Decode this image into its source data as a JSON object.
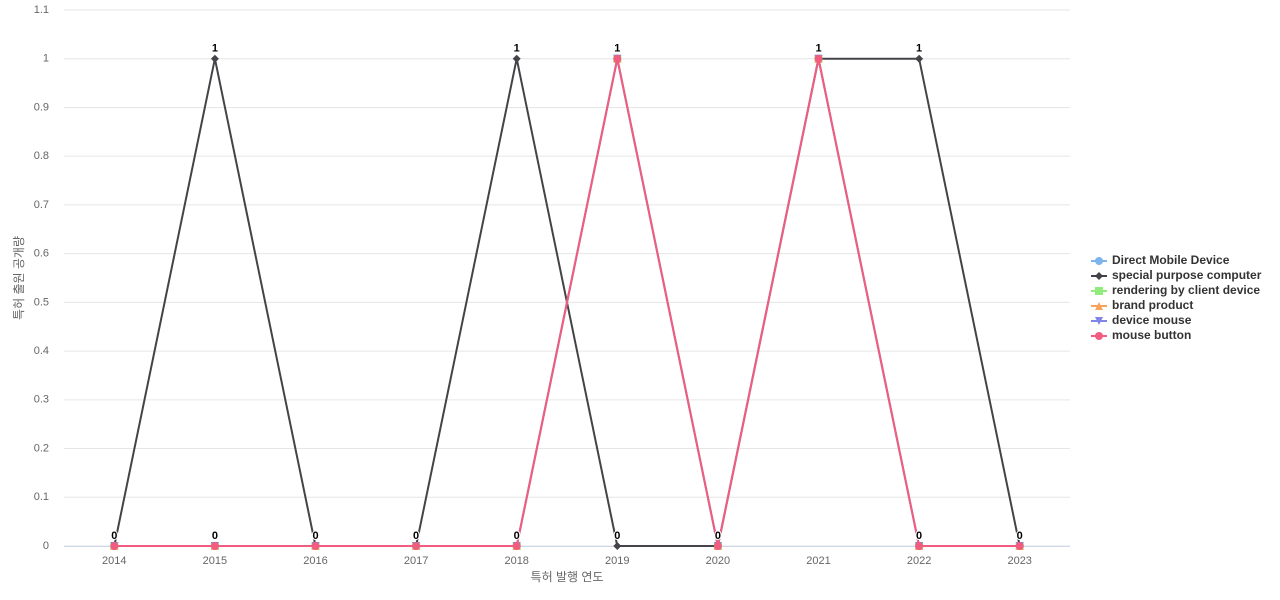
{
  "chart_data": {
    "type": "line",
    "x_label": "특허 발행 연도",
    "y_label": "특허 출원 공개량",
    "categories": [
      "2014",
      "2015",
      "2016",
      "2017",
      "2018",
      "2019",
      "2020",
      "2021",
      "2022",
      "2023"
    ],
    "ylim": [
      0,
      1.1
    ],
    "yticks": [
      0,
      0.1,
      0.2,
      0.3,
      0.4,
      0.5,
      0.6,
      0.7,
      0.8,
      0.9,
      1,
      1.1
    ],
    "grid": true,
    "legend": "right",
    "series": [
      {
        "name": "Direct Mobile Device",
        "color": "#7cb5ec",
        "marker": "circle",
        "values": [
          0,
          0,
          0,
          0,
          0,
          1,
          0,
          1,
          0,
          0
        ]
      },
      {
        "name": "special purpose computer",
        "color": "#434348",
        "marker": "diamond",
        "values": [
          0,
          1,
          0,
          0,
          1,
          0,
          0,
          1,
          1,
          0
        ]
      },
      {
        "name": "rendering by client device",
        "color": "#90ed7d",
        "marker": "square",
        "values": [
          0,
          0,
          0,
          0,
          0,
          1,
          0,
          1,
          0,
          0
        ]
      },
      {
        "name": "brand product",
        "color": "#f7a35c",
        "marker": "triangle",
        "values": [
          0,
          0,
          0,
          0,
          0,
          1,
          0,
          1,
          0,
          0
        ]
      },
      {
        "name": "device mouse",
        "color": "#8085e9",
        "marker": "triangle-down",
        "values": [
          0,
          0,
          0,
          0,
          0,
          1,
          0,
          1,
          0,
          0
        ]
      },
      {
        "name": "mouse button",
        "color": "#f15c80",
        "marker": "circle",
        "values": [
          0,
          0,
          0,
          0,
          0,
          1,
          0,
          1,
          0,
          0
        ]
      }
    ]
  }
}
